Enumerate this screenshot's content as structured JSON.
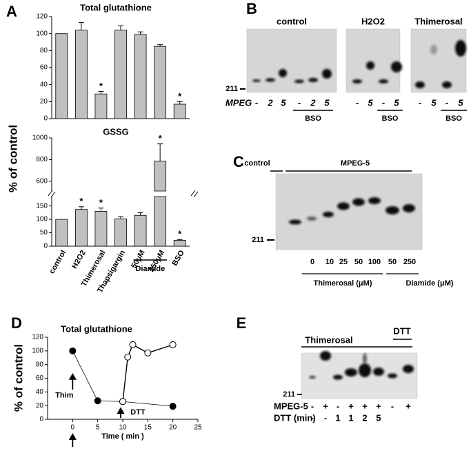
{
  "chart_data": [
    {
      "type": "bar",
      "letter": "A",
      "title": "Total glutathione",
      "ylabel": "% of control",
      "values": [
        100,
        104,
        29,
        104,
        99,
        85,
        17
      ],
      "errors": [
        0,
        9,
        3,
        5,
        3,
        2,
        3
      ],
      "significant": [
        false,
        false,
        true,
        false,
        false,
        false,
        true
      ],
      "star": "*",
      "color": "#c0c0c0",
      "ylim": [
        0,
        120
      ],
      "yticks": [
        0,
        20,
        40,
        60,
        80,
        100,
        120
      ]
    },
    {
      "type": "bar",
      "title": "GSSG",
      "categories": [
        "control",
        "H2O2",
        "Thimerosal",
        "Thapsigargin",
        "50μM",
        "250μM",
        "BSO"
      ],
      "values": [
        100,
        137,
        130,
        102,
        115,
        785,
        22
      ],
      "errors": [
        0,
        10,
        12,
        8,
        10,
        160,
        3
      ],
      "significant": [
        false,
        true,
        true,
        false,
        false,
        true,
        true
      ],
      "star": "*",
      "color": "#c0c0c0",
      "segments": [
        {
          "ylim": [
            0,
            185
          ],
          "yticks": [
            0,
            50,
            100,
            150
          ]
        },
        {
          "ylim": [
            510,
            1000
          ],
          "yticks": [
            600,
            800,
            1000
          ]
        }
      ],
      "groups": [
        {
          "label": "Diamide",
          "categories": [
            4,
            5
          ]
        }
      ]
    },
    {
      "type": "line",
      "letter": "D",
      "title": "Total glutathione",
      "ylabel": "% of control",
      "xlabel": "Time ( min )",
      "series": [
        {
          "name": "Thim",
          "color": "#000000",
          "fill": "#000000",
          "x": [
            0,
            5,
            10,
            20
          ],
          "values": [
            100,
            27,
            26,
            19
          ]
        },
        {
          "name": "DTT",
          "color": "#000000",
          "fill": "#ffffff",
          "x": [
            10,
            11,
            12,
            15,
            20
          ],
          "values": [
            26,
            91,
            109,
            97,
            109
          ]
        }
      ],
      "xlim": [
        -5,
        25
      ],
      "xticks": [
        0,
        5,
        10,
        15,
        20,
        25
      ],
      "ylim": [
        0,
        120
      ],
      "yticks": [
        0,
        20,
        40,
        60,
        80,
        100,
        120
      ]
    }
  ],
  "blots": {
    "B": {
      "letter": "B",
      "marker": "211",
      "row_label": "MPEG",
      "panels": [
        {
          "title": "control",
          "lanes": [
            "-",
            "2",
            "5",
            "-",
            "2",
            "5"
          ],
          "bracket": "BSO"
        },
        {
          "title": "H2O2",
          "lanes": [
            "-",
            "5",
            "-",
            "5"
          ],
          "bracket": "BSO"
        },
        {
          "title": "Thimerosal",
          "lanes": [
            "-",
            "5",
            "-",
            "5"
          ],
          "bracket": "BSO"
        }
      ]
    },
    "C": {
      "letter": "C",
      "marker": "211",
      "top_labels": [
        "control",
        "MPEG-5"
      ],
      "lanes": [
        "0",
        "10",
        "25",
        "50",
        "100",
        "50",
        "250"
      ],
      "groups": [
        "Thimerosal (μM)",
        "Diamide (μM)"
      ]
    },
    "E": {
      "letter": "E",
      "marker": "211",
      "top_labels": [
        "Thimerosal",
        "DTT"
      ],
      "rows": [
        {
          "label": "MPEG-5",
          "values": [
            "-",
            "+",
            "-",
            "+",
            "+",
            "+",
            "-",
            "+"
          ]
        },
        {
          "label": "DTT (min)",
          "values": [
            "-",
            "-",
            "1",
            "1",
            "2",
            "5"
          ]
        }
      ]
    }
  }
}
